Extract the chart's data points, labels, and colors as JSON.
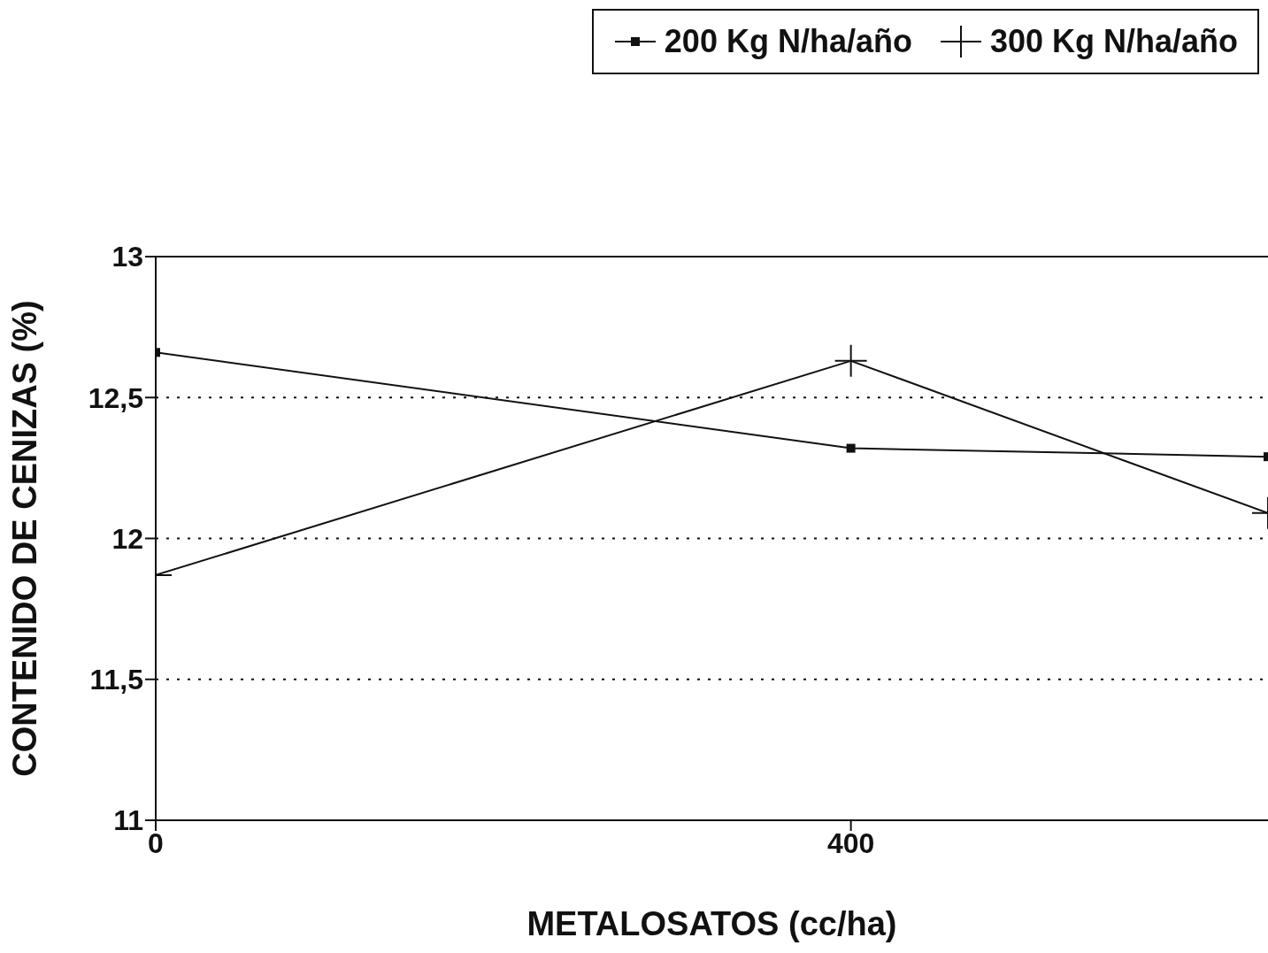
{
  "chart_data": {
    "type": "line",
    "xlabel": "METALOSATOS   (cc/ha)",
    "ylabel": "CONTENIDO DE CENIZAS   (%)",
    "x": [
      0,
      400,
      640
    ],
    "xlim": [
      0,
      640
    ],
    "xticks": [
      0,
      400
    ],
    "ylim": [
      11,
      13
    ],
    "yticks": [
      11,
      {
        "value": 11.5,
        "label": "11,5"
      },
      12,
      {
        "value": 12.5,
        "label": "12,5"
      },
      13
    ],
    "grid": "y",
    "legend": "top right",
    "line_style": "solid",
    "series": [
      {
        "name": "200 Kg N/ha/año",
        "color": "#111111",
        "marker": "square",
        "values": [
          12.66,
          12.32,
          12.29
        ]
      },
      {
        "name": "300 Kg N/ha/año",
        "color": "#111111",
        "marker": "cross",
        "values": [
          11.87,
          12.63,
          12.09
        ]
      }
    ]
  }
}
